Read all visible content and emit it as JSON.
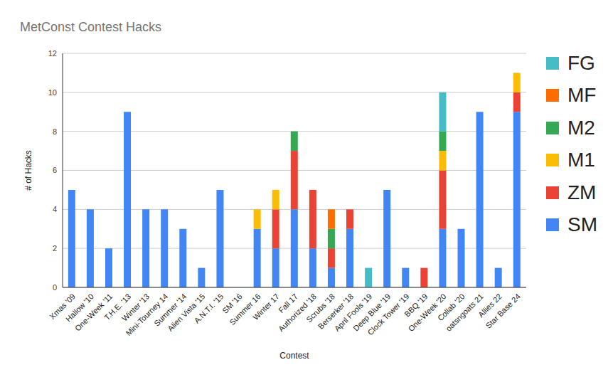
{
  "chart_data": {
    "type": "bar",
    "title": "MetConst Contest Hacks",
    "x_label": "Contest",
    "y_label": "# of Hacks",
    "categories": [
      "Xmas '09",
      "Hallow '10",
      "One-Week '11",
      "T.H.E. '13",
      "Winter '13",
      "Mini-Tourney 14",
      "Summer '14",
      "Alien Vista '15",
      "A.N.T.I. '15",
      "SM '16",
      "Summer 16",
      "Winter 17",
      "Fall 17",
      "Authorized '18",
      "Scrubs '18",
      "Berserker '18",
      "April Fools '19",
      "Deep Blue '19",
      "Clock Tower '19",
      "BBQ '19",
      "One-Week '20",
      "Collab '20",
      "oatsngoats 21",
      "Allies 22",
      "Star Base 24"
    ],
    "series": [
      {
        "name": "SM",
        "color": "#4285f4",
        "values": [
          5,
          4,
          2,
          9,
          4,
          4,
          3,
          1,
          5,
          0,
          3,
          2,
          4,
          2,
          1,
          3,
          0,
          5,
          1,
          0,
          3,
          3,
          9,
          1,
          9
        ]
      },
      {
        "name": "ZM",
        "color": "#ea4335",
        "values": [
          0,
          0,
          0,
          0,
          0,
          0,
          0,
          0,
          0,
          0,
          0,
          2,
          3,
          3,
          1,
          1,
          0,
          0,
          0,
          1,
          3,
          0,
          0,
          0,
          1
        ]
      },
      {
        "name": "M1",
        "color": "#fbbc04",
        "values": [
          0,
          0,
          0,
          0,
          0,
          0,
          0,
          0,
          0,
          0,
          1,
          1,
          0,
          0,
          0,
          0,
          0,
          0,
          0,
          0,
          1,
          0,
          0,
          0,
          1
        ]
      },
      {
        "name": "M2",
        "color": "#34a853",
        "values": [
          0,
          0,
          0,
          0,
          0,
          0,
          0,
          0,
          0,
          0,
          0,
          0,
          1,
          0,
          1,
          0,
          0,
          0,
          0,
          0,
          1,
          0,
          0,
          0,
          0
        ]
      },
      {
        "name": "MF",
        "color": "#ff6d01",
        "values": [
          0,
          0,
          0,
          0,
          0,
          0,
          0,
          0,
          0,
          0,
          0,
          0,
          0,
          0,
          1,
          0,
          0,
          0,
          0,
          0,
          0,
          0,
          0,
          0,
          0
        ]
      },
      {
        "name": "FG",
        "color": "#46bdc6",
        "values": [
          0,
          0,
          0,
          0,
          0,
          0,
          0,
          0,
          0,
          0,
          0,
          0,
          0,
          0,
          0,
          0,
          1,
          0,
          0,
          0,
          2,
          0,
          0,
          0,
          0
        ]
      }
    ],
    "ylim": [
      0,
      12
    ],
    "yticks": [
      0,
      2,
      4,
      6,
      8,
      10,
      12
    ],
    "grid": true,
    "stacked": true,
    "legend": "right"
  }
}
